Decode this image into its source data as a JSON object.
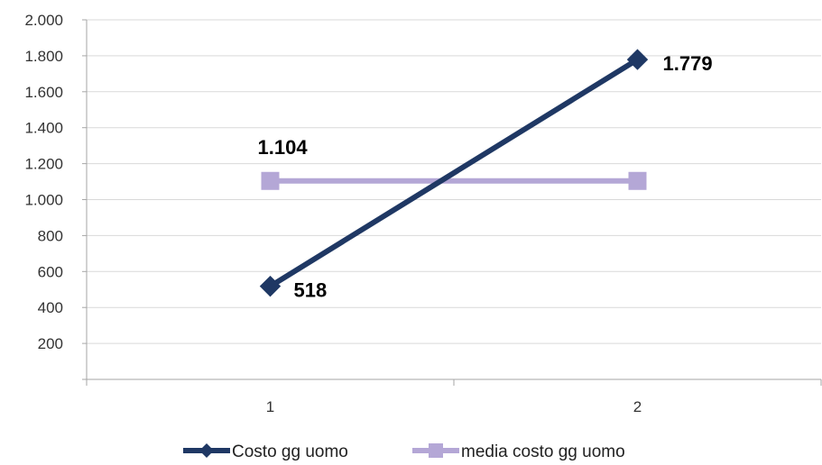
{
  "chart_data": {
    "type": "line",
    "categories": [
      "1",
      "2"
    ],
    "ylim": [
      0,
      2000
    ],
    "y_ticks": [
      {
        "value": 200,
        "label": "200"
      },
      {
        "value": 400,
        "label": "400"
      },
      {
        "value": 600,
        "label": "600"
      },
      {
        "value": 800,
        "label": "800"
      },
      {
        "value": 1000,
        "label": "1.000"
      },
      {
        "value": 1200,
        "label": "1.200"
      },
      {
        "value": 1400,
        "label": "1.400"
      },
      {
        "value": 1600,
        "label": "1.600"
      },
      {
        "value": 1800,
        "label": "1.800"
      },
      {
        "value": 2000,
        "label": "2.000"
      }
    ],
    "grid": true,
    "legend_position": "bottom",
    "series": [
      {
        "name": "Costo gg uomo",
        "values": [
          518,
          1779
        ],
        "color": "#1F3864",
        "marker": "diamond",
        "data_labels": [
          "518",
          "1.779"
        ]
      },
      {
        "name": "media costo gg uomo",
        "values": [
          1104,
          1104
        ],
        "color": "#B4A7D6",
        "marker": "square",
        "data_labels": [
          "1.104",
          ""
        ]
      }
    ]
  }
}
